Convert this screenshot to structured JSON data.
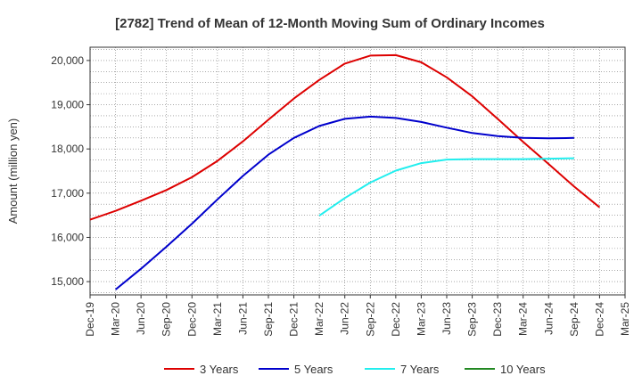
{
  "chart_data": {
    "type": "line",
    "title": "[2782]  Trend of Mean of 12-Month Moving Sum of Ordinary Incomes",
    "xlabel": "",
    "ylabel": "Amount (million yen)",
    "ylim": [
      14700,
      20300
    ],
    "yticks": [
      15000,
      16000,
      17000,
      18000,
      19000,
      20000
    ],
    "ytick_labels": [
      "15,000",
      "16,000",
      "17,000",
      "18,000",
      "19,000",
      "20,000"
    ],
    "categories": [
      "Dec-19",
      "Mar-20",
      "Jun-20",
      "Sep-20",
      "Dec-20",
      "Mar-21",
      "Jun-21",
      "Sep-21",
      "Dec-21",
      "Mar-22",
      "Jun-22",
      "Sep-22",
      "Dec-22",
      "Mar-23",
      "Jun-23",
      "Sep-23",
      "Dec-23",
      "Mar-24",
      "Jun-24",
      "Sep-24",
      "Dec-24",
      "Mar-25"
    ],
    "grid": true,
    "legend": "bottom",
    "series": [
      {
        "name": "3 Years",
        "color": "#dd0000",
        "values": [
          16400,
          16600,
          16830,
          17070,
          17360,
          17730,
          18170,
          18660,
          19140,
          19560,
          19930,
          20110,
          20120,
          19960,
          19620,
          19190,
          18680,
          18160,
          17660,
          17150,
          16680,
          null
        ]
      },
      {
        "name": "5 Years",
        "color": "#0000cc",
        "values": [
          null,
          14820,
          15290,
          15790,
          16310,
          16860,
          17390,
          17870,
          18250,
          18520,
          18680,
          18730,
          18700,
          18610,
          18480,
          18360,
          18290,
          18250,
          18240,
          18250,
          null,
          null
        ]
      },
      {
        "name": "7 Years",
        "color": "#22eeee",
        "values": [
          null,
          null,
          null,
          null,
          null,
          null,
          null,
          null,
          null,
          16490,
          16890,
          17240,
          17510,
          17680,
          17760,
          17770,
          17770,
          17770,
          17780,
          17790,
          null,
          null
        ]
      },
      {
        "name": "10 Years",
        "color": "#228822",
        "values": [
          null,
          null,
          null,
          null,
          null,
          null,
          null,
          null,
          null,
          null,
          null,
          null,
          null,
          null,
          null,
          null,
          null,
          null,
          null,
          null,
          null,
          null
        ]
      }
    ]
  }
}
